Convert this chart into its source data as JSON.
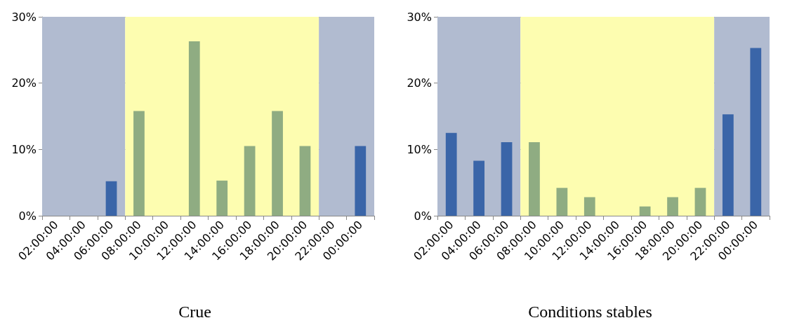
{
  "chart_data": [
    {
      "type": "bar",
      "title": "Crue",
      "categories": [
        "02:00:00",
        "04:00:00",
        "06:00:00",
        "08:00:00",
        "10:00:00",
        "12:00:00",
        "14:00:00",
        "16:00:00",
        "18:00:00",
        "20:00:00",
        "22:00:00",
        "00:00:00"
      ],
      "values": [
        0,
        0,
        5.2,
        15.8,
        0,
        26.3,
        5.3,
        10.5,
        15.8,
        10.5,
        0,
        10.5
      ],
      "colors": [
        "#3a65a8",
        "#3a65a8",
        "#3a65a8",
        "#8fac82",
        "#8fac82",
        "#8fac82",
        "#8fac82",
        "#8fac82",
        "#8fac82",
        "#8fac82",
        "#3a65a8",
        "#3a65a8"
      ],
      "ylim": [
        0,
        30
      ],
      "yticks": [
        {
          "value": 0,
          "label": "0%"
        },
        {
          "value": 10,
          "label": "10%"
        },
        {
          "value": 20,
          "label": "20%"
        },
        {
          "value": 30,
          "label": "30%"
        }
      ],
      "grid": "y",
      "bands": [
        {
          "axis": "x",
          "from": "02:00:00",
          "to": "06:00:00",
          "color": "#b1bbd0"
        },
        {
          "axis": "x",
          "from": "08:00:00",
          "to": "20:00:00",
          "color": "#fdfdb0"
        },
        {
          "axis": "x",
          "from": "22:00:00",
          "to": "00:00:00",
          "color": "#b1bbd0"
        }
      ]
    },
    {
      "type": "bar",
      "title": "Conditions stables",
      "categories": [
        "02:00:00",
        "04:00:00",
        "06:00:00",
        "08:00:00",
        "10:00:00",
        "12:00:00",
        "14:00:00",
        "16:00:00",
        "18:00:00",
        "20:00:00",
        "22:00:00",
        "00:00:00"
      ],
      "values": [
        12.5,
        8.3,
        11.1,
        11.1,
        4.2,
        2.8,
        0,
        1.4,
        2.8,
        4.2,
        15.3,
        25.3
      ],
      "colors": [
        "#3a65a8",
        "#3a65a8",
        "#3a65a8",
        "#8fac82",
        "#8fac82",
        "#8fac82",
        "#8fac82",
        "#8fac82",
        "#8fac82",
        "#8fac82",
        "#3a65a8",
        "#3a65a8"
      ],
      "ylim": [
        0,
        30
      ],
      "yticks": [
        {
          "value": 0,
          "label": "0%"
        },
        {
          "value": 10,
          "label": "10%"
        },
        {
          "value": 20,
          "label": "20%"
        },
        {
          "value": 30,
          "label": "30%"
        }
      ],
      "grid": "y",
      "bands": [
        {
          "axis": "x",
          "from": "02:00:00",
          "to": "06:00:00",
          "color": "#b1bbd0"
        },
        {
          "axis": "x",
          "from": "08:00:00",
          "to": "20:00:00",
          "color": "#fdfdb0"
        },
        {
          "axis": "x",
          "from": "22:00:00",
          "to": "00:00:00",
          "color": "#b1bbd0"
        }
      ]
    }
  ]
}
